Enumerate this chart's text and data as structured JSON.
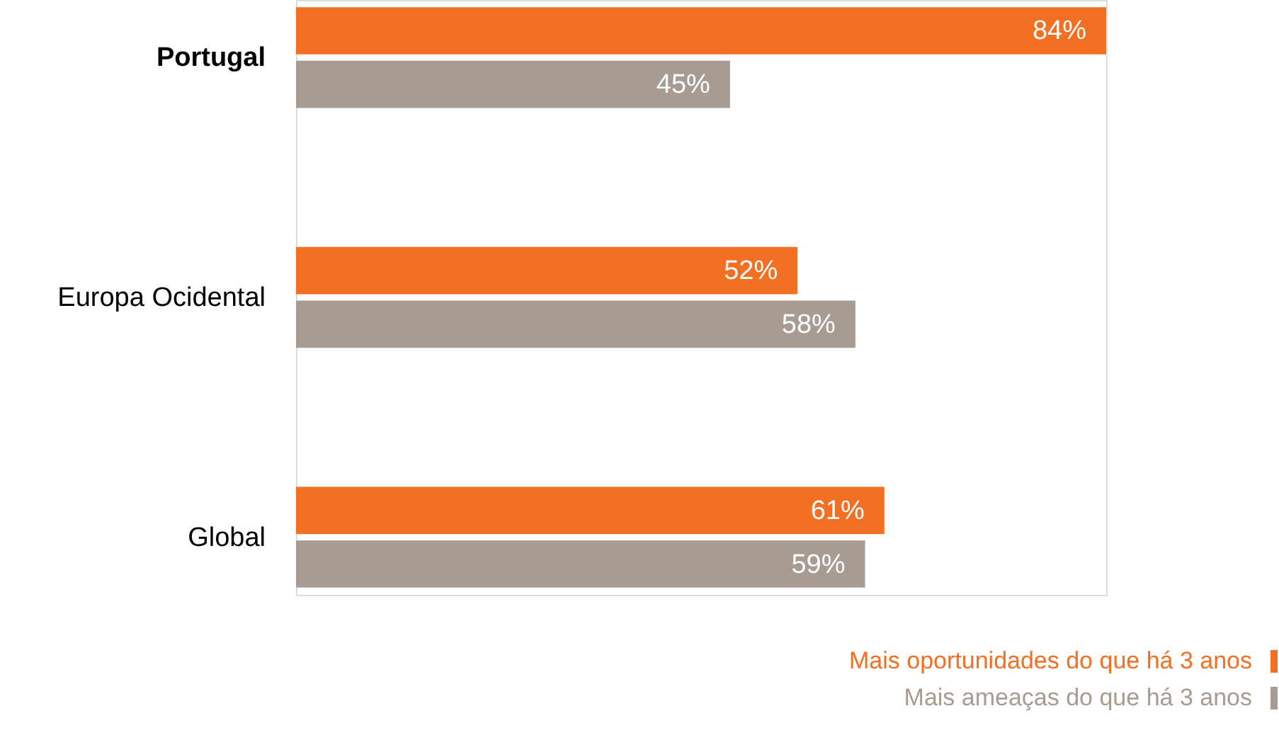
{
  "chart_data": {
    "type": "bar",
    "orientation": "horizontal",
    "categories": [
      "Portugal",
      "Europa Ocidental",
      "Global"
    ],
    "series": [
      {
        "name": "Mais oportunidades do que há 3 anos",
        "color": "#f36f21",
        "values": [
          84,
          52,
          61
        ],
        "value_labels": [
          "84%",
          "52%",
          "61%"
        ]
      },
      {
        "name": "Mais ameaças do que há 3 anos",
        "color": "#a89b91",
        "values": [
          45,
          58,
          59
        ],
        "value_labels": [
          "45%",
          "58%",
          "59%"
        ]
      }
    ],
    "legend": "bottom right",
    "tick_labels": "y"
  }
}
